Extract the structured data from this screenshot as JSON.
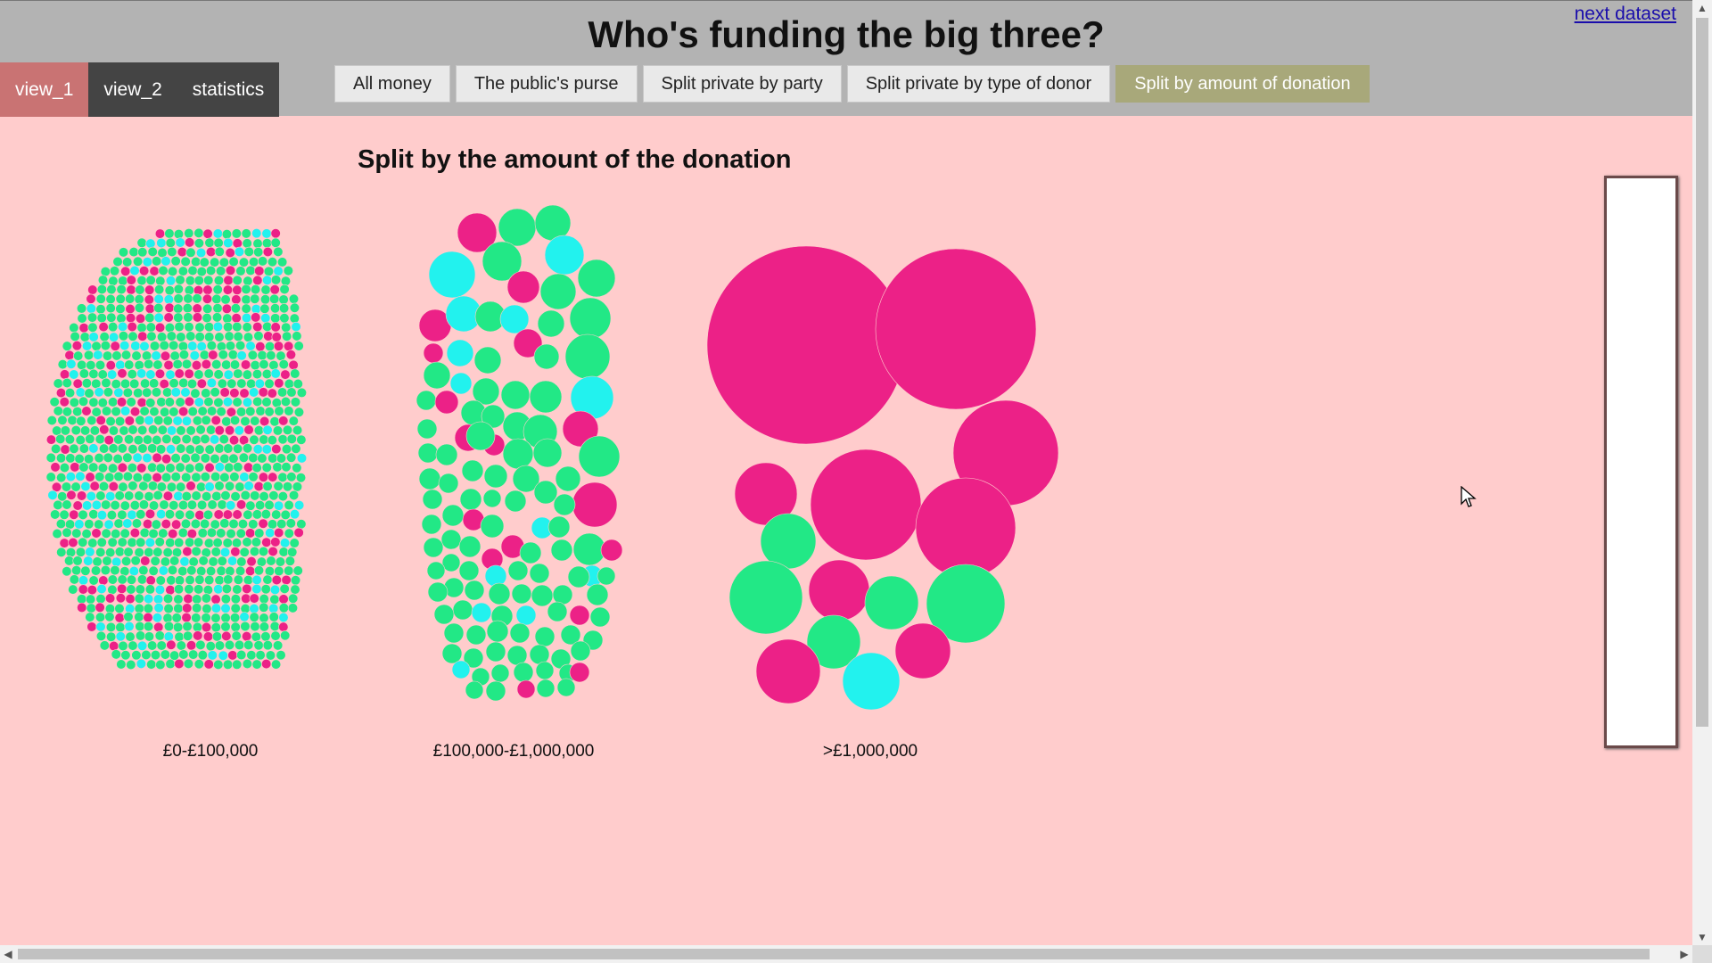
{
  "page": {
    "title": "Who's funding the big three?",
    "next_link": "next dataset",
    "section_title": "Split by the amount of the donation"
  },
  "view_tabs": [
    {
      "label": "view_1",
      "active": true
    },
    {
      "label": "view_2",
      "active": false
    },
    {
      "label": "statistics",
      "active": false
    }
  ],
  "mode_buttons": [
    {
      "label": "All money",
      "active": false
    },
    {
      "label": "The public's purse",
      "active": false
    },
    {
      "label": "Split private by party",
      "active": false
    },
    {
      "label": "Split private by type of donor",
      "active": false
    },
    {
      "label": "Split by amount of donation",
      "active": true
    }
  ],
  "colors": {
    "background": "#ffcccc",
    "magenta": "#ec2187",
    "green": "#22e886",
    "cyan": "#22f2ee"
  },
  "groups": [
    {
      "label": "£0-£100,000"
    },
    {
      "label": "£100,000-£1,000,000"
    },
    {
      "label": ">£1,000,000"
    }
  ],
  "icons": {
    "cursor": "mouse-pointer-icon",
    "scroll_up": "chevron-up-icon",
    "scroll_down": "chevron-down-icon",
    "scroll_left": "chevron-left-icon",
    "scroll_right": "chevron-right-icon"
  }
}
